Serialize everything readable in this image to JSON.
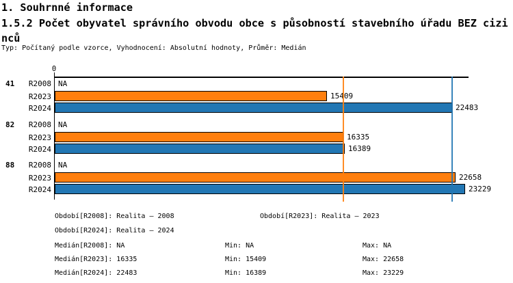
{
  "header": {
    "section_title": "1. Souhrnné informace",
    "chart_title": "1.5.2 Počet obyvatel správního obvodu obce s působností stavebního úřadu BEZ cizinců",
    "meta": "Typ: Počítaný podle vzorce, Vyhodnocení: Absolutní hodnoty, Průměr: Medián"
  },
  "chart_data": {
    "type": "bar",
    "orientation": "horizontal",
    "title": "1.5.2 Počet obyvatel správního obvodu obce s působností stavebního úřadu BEZ cizinců",
    "axis": {
      "tick_zero_label": "0",
      "min_value": 0,
      "max_value": 23450,
      "grid": false
    },
    "series_colors": {
      "R2023": "#ff7f0e",
      "R2024": "#2277b4"
    },
    "groups": [
      {
        "label": "41",
        "bars": [
          {
            "series": "R2008",
            "value": null,
            "display": "NA"
          },
          {
            "series": "R2023",
            "value": 15409,
            "display": "15409"
          },
          {
            "series": "R2024",
            "value": 22483,
            "display": "22483"
          }
        ]
      },
      {
        "label": "82",
        "bars": [
          {
            "series": "R2008",
            "value": null,
            "display": "NA"
          },
          {
            "series": "R2023",
            "value": 16335,
            "display": "16335"
          },
          {
            "series": "R2024",
            "value": 16389,
            "display": "16389"
          }
        ]
      },
      {
        "label": "88",
        "bars": [
          {
            "series": "R2008",
            "value": null,
            "display": "NA"
          },
          {
            "series": "R2023",
            "value": 22658,
            "display": "22658"
          },
          {
            "series": "R2024",
            "value": 23229,
            "display": "23229"
          }
        ]
      }
    ],
    "reference_lines": [
      {
        "name": "median-r2023",
        "value": 16335,
        "color": "#ff7f0e"
      },
      {
        "name": "median-r2024",
        "value": 22483,
        "color": "#2277b4"
      }
    ]
  },
  "legend": {
    "period_r2008": "Období[R2008]: Realita – 2008",
    "period_r2023": "Období[R2023]: Realita – 2023",
    "period_r2024": "Období[R2024]: Realita – 2024",
    "stats": [
      {
        "median": "Medián[R2008]: NA",
        "min": "Min: NA",
        "max": "Max: NA"
      },
      {
        "median": "Medián[R2023]: 16335",
        "min": "Min: 15409",
        "max": "Max: 22658"
      },
      {
        "median": "Medián[R2024]: 22483",
        "min": "Min: 16389",
        "max": "Max: 23229"
      }
    ]
  }
}
